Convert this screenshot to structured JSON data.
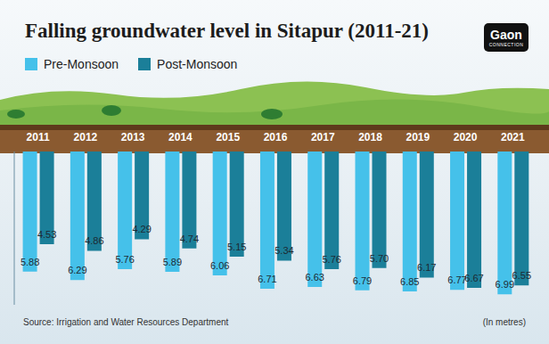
{
  "chart_data": {
    "type": "bar",
    "title": "Falling groundwater level in Sitapur (2011-21)",
    "logo": "Gaon",
    "logo_subtitle": "CONNECTION",
    "source": "Source: Irrigation and Water Resources Department",
    "unit_note": "(In metres)",
    "categories": [
      "2011",
      "2012",
      "2013",
      "2014",
      "2015",
      "2016",
      "2017",
      "2018",
      "2019",
      "2020",
      "2021"
    ],
    "series": [
      {
        "name": "Pre-Monsoon",
        "color": "#45c1ea",
        "values": [
          5.88,
          6.29,
          5.76,
          5.89,
          6.06,
          6.71,
          6.63,
          6.79,
          6.85,
          6.77,
          6.99
        ],
        "value_labels": [
          "5.88",
          "6.29",
          "5.76",
          "5.89",
          "6.06",
          "6.71",
          "6.63",
          "6.79",
          "6.85",
          "6.77",
          "6.99"
        ]
      },
      {
        "name": "Post-Monsoon",
        "color": "#1b7f99",
        "values": [
          4.53,
          4.86,
          4.29,
          4.74,
          5.15,
          5.34,
          5.76,
          5.7,
          6.17,
          6.67,
          6.55
        ],
        "value_labels": [
          "4.53",
          "4.86",
          "4.29",
          "4.74",
          "5.15",
          "5.34",
          "5.76",
          "5.70",
          "6.17",
          "6.67",
          "6.55"
        ]
      }
    ],
    "ylim": [
      0,
      7.5
    ],
    "data_labels": true,
    "tick_labels": "x",
    "legend": "top left"
  }
}
